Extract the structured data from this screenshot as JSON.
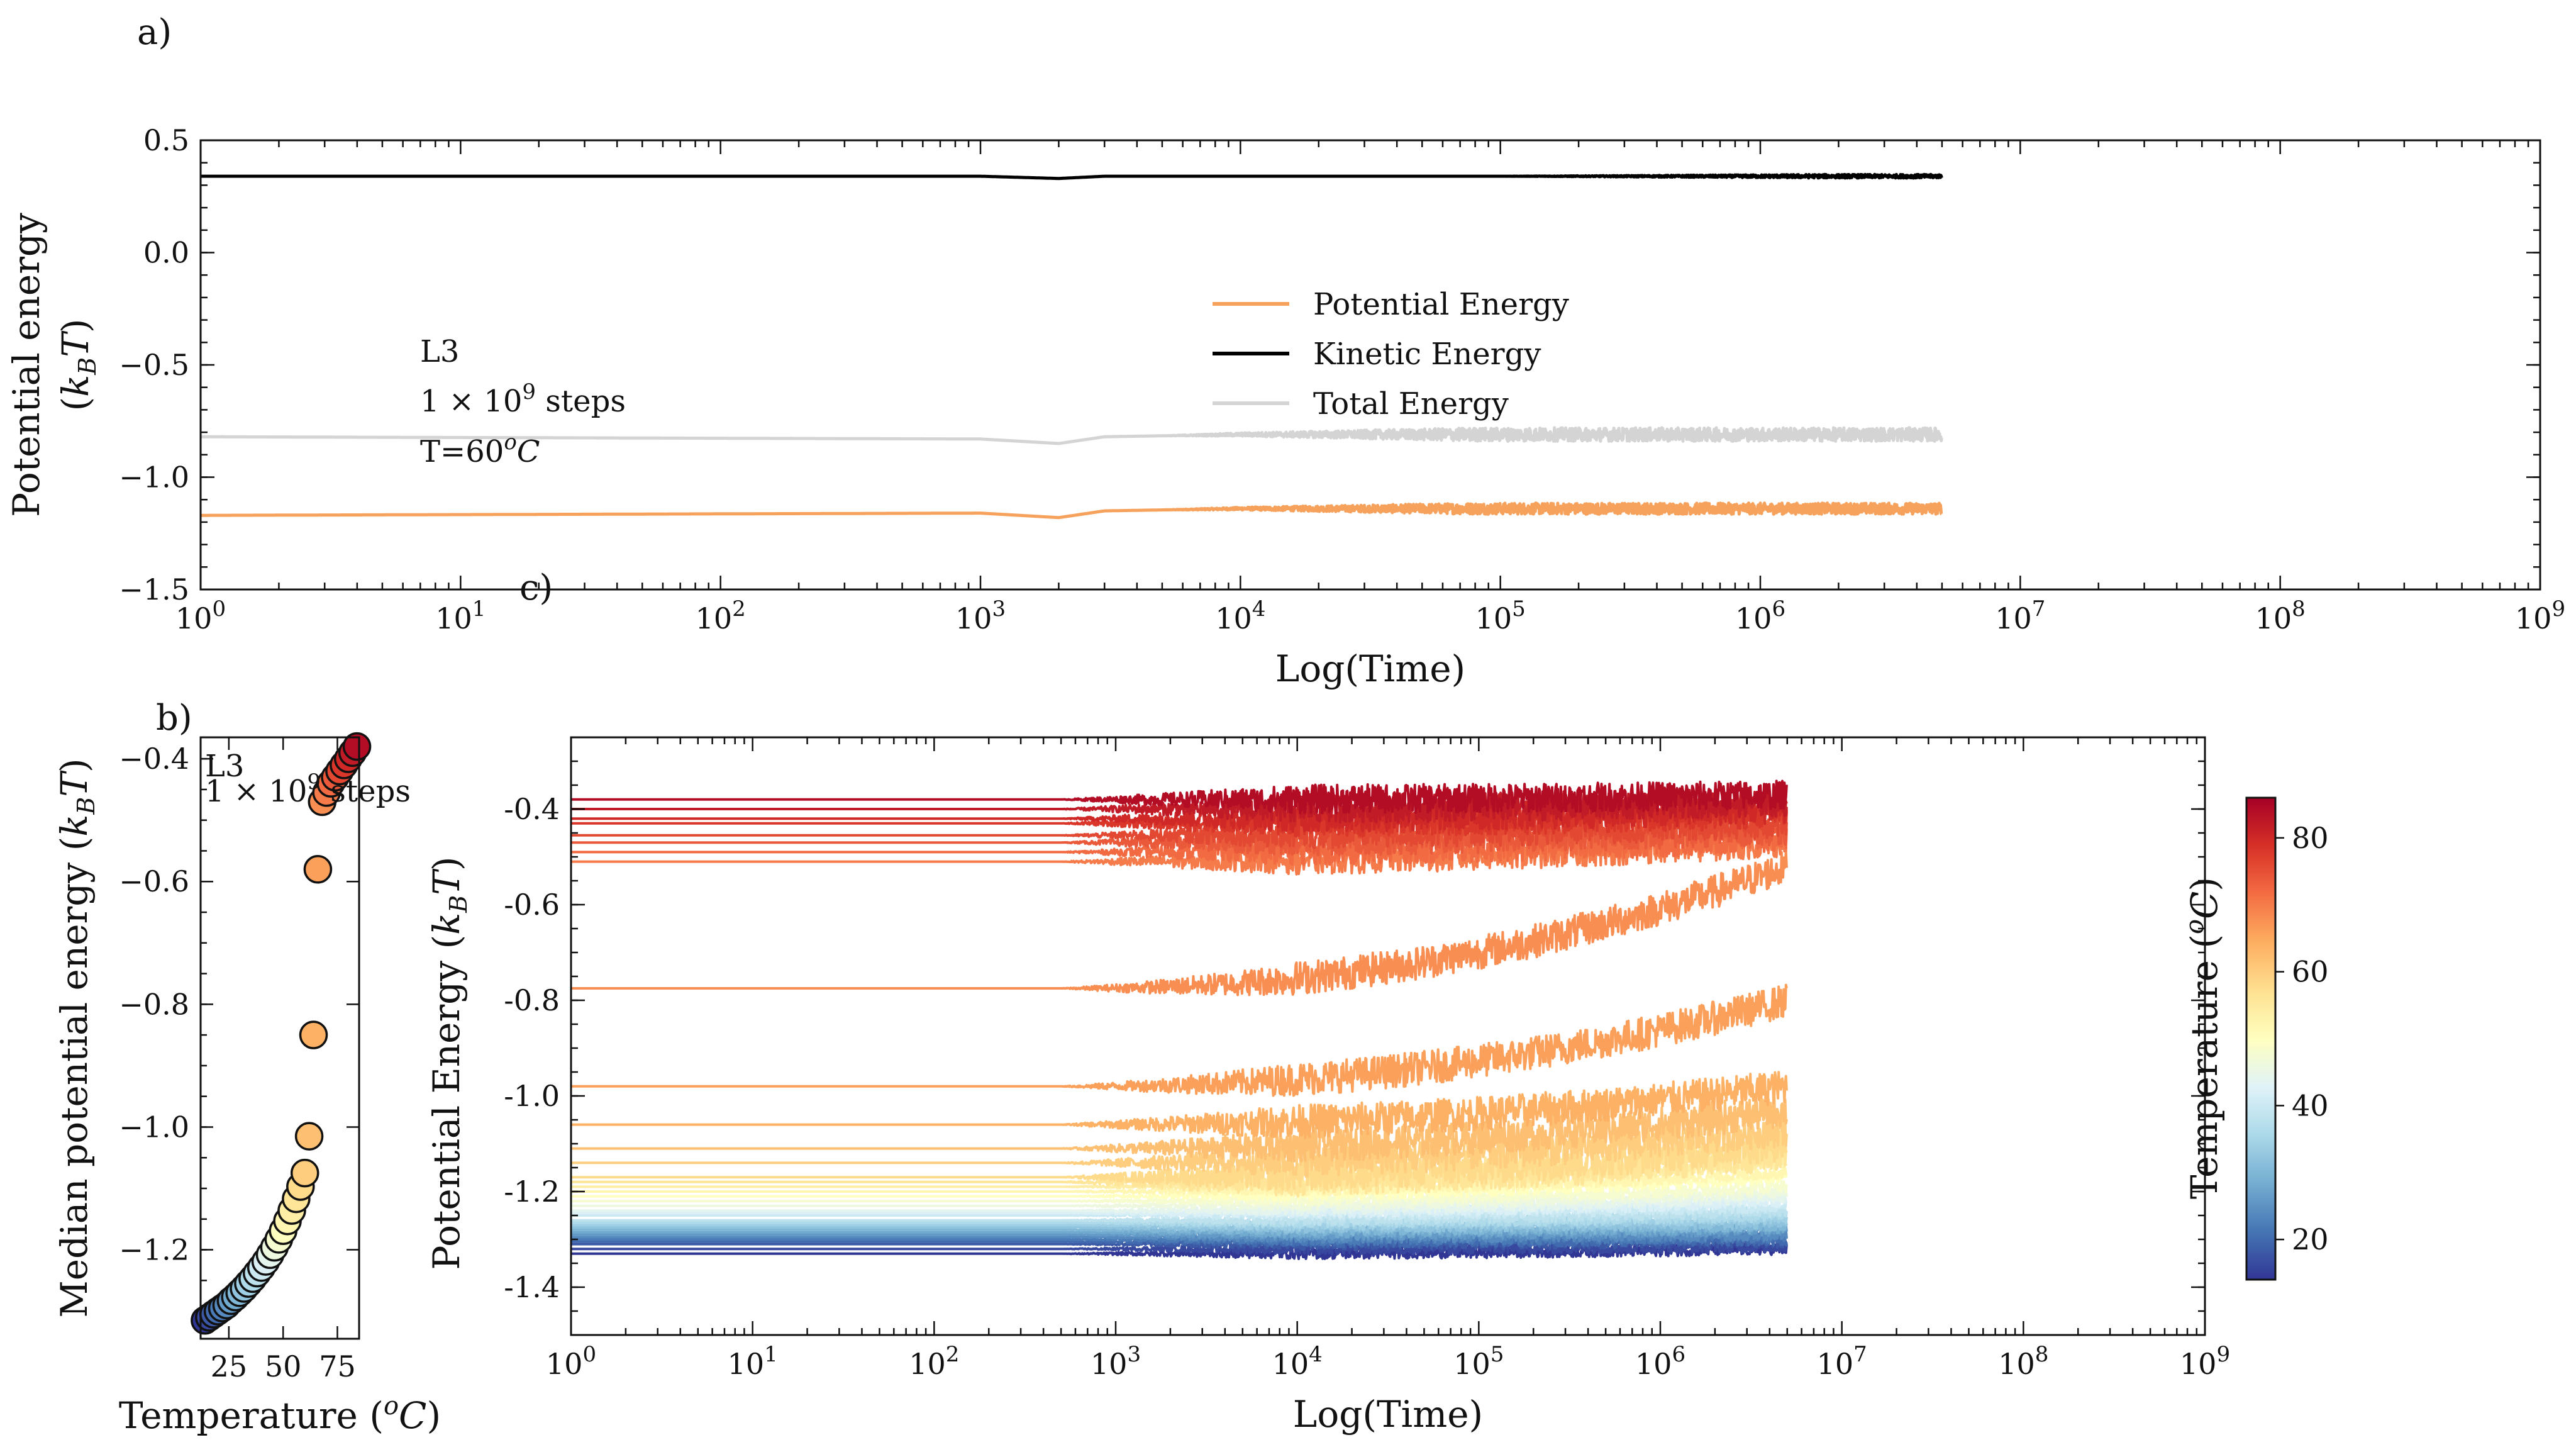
{
  "figure": {
    "panel_a_label": "a)",
    "panel_b_label": "b)",
    "panel_c_label": "c)"
  },
  "chart_data": [
    {
      "id": "a",
      "type": "line",
      "xscale": "log",
      "xlim": [
        1,
        1000000000
      ],
      "ylim": [
        -1.5,
        0.5
      ],
      "xlabel": "Log(Time)",
      "ylabel_line1": "Potential energy",
      "ylabel_line2": "(k_B T)",
      "x_tick_labels": [
        "10^0",
        "10^1",
        "10^2",
        "10^3",
        "10^4",
        "10^5",
        "10^6",
        "10^7",
        "10^8",
        "10^9"
      ],
      "y_ticks": [
        -1.5,
        -1.0,
        -0.5,
        0.0,
        0.5
      ],
      "y_tick_labels": [
        "−1.5",
        "−1.0",
        "−0.5",
        "0.0",
        "0.5"
      ],
      "annotation": [
        "L3",
        "1 × 10^9 steps",
        "T=60°C"
      ],
      "legend_position": "center",
      "series": [
        {
          "name": "Potential Energy",
          "color": "#f6a25c",
          "x": [
            1,
            1000,
            2000,
            3000,
            10000,
            100000,
            1000000,
            5000000
          ],
          "y": [
            -1.17,
            -1.16,
            -1.18,
            -1.15,
            -1.14,
            -1.14,
            -1.14,
            -1.14
          ],
          "noise_start": 5000,
          "noise_amp": 0.025
        },
        {
          "name": "Kinetic Energy",
          "color": "#000000",
          "x": [
            1,
            1000,
            2000,
            3000,
            10000,
            100000,
            1000000,
            5000000
          ],
          "y": [
            0.34,
            0.34,
            0.33,
            0.34,
            0.34,
            0.34,
            0.34,
            0.34
          ],
          "noise_start": 100000,
          "noise_amp": 0.008
        },
        {
          "name": "Total Energy",
          "color": "#d4d4d4",
          "x": [
            1,
            1000,
            2000,
            3000,
            10000,
            100000,
            1000000,
            5000000
          ],
          "y": [
            -0.82,
            -0.83,
            -0.85,
            -0.82,
            -0.81,
            -0.81,
            -0.81,
            -0.81
          ],
          "noise_start": 5000,
          "noise_amp": 0.03
        }
      ]
    },
    {
      "id": "b",
      "type": "scatter",
      "xlim": [
        12,
        85
      ],
      "ylim": [
        -1.345,
        -0.365
      ],
      "xlabel": "Temperature (°C)",
      "ylabel": "Median potential energy (k_B T)",
      "x_ticks": [
        25,
        50,
        75
      ],
      "x_tick_labels": [
        "25",
        "50",
        "75"
      ],
      "y_ticks": [
        -1.2,
        -1.0,
        -0.8,
        -0.6,
        -0.4
      ],
      "y_tick_labels": [
        "−1.2",
        "−1.0",
        "−0.8",
        "−0.6",
        "−0.4"
      ],
      "annotation": [
        "L3",
        "1 × 10^9 steps"
      ],
      "x": [
        14,
        16,
        18,
        20,
        22,
        24,
        26,
        28,
        30,
        32,
        34,
        36,
        38,
        40,
        42,
        44,
        46,
        48,
        50,
        52,
        54,
        56,
        58,
        60,
        62,
        64,
        66,
        68,
        70,
        72,
        74,
        76,
        78,
        80,
        82,
        84
      ],
      "y": [
        -1.315,
        -1.31,
        -1.305,
        -1.3,
        -1.295,
        -1.29,
        -1.283,
        -1.277,
        -1.27,
        -1.263,
        -1.255,
        -1.247,
        -1.238,
        -1.229,
        -1.219,
        -1.208,
        -1.196,
        -1.183,
        -1.169,
        -1.153,
        -1.136,
        -1.117,
        -1.097,
        -1.075,
        -1.015,
        -0.85,
        -0.58,
        -0.47,
        -0.455,
        -0.44,
        -0.43,
        -0.42,
        -0.41,
        -0.4,
        -0.39,
        -0.38
      ]
    },
    {
      "id": "c",
      "type": "line",
      "xscale": "log",
      "xlim": [
        1,
        1000000000
      ],
      "ylim": [
        -1.5,
        -0.25
      ],
      "xlabel": "Log(Time)",
      "ylabel": "Potential Energy (k_B T)",
      "x_tick_labels": [
        "10^0",
        "10^1",
        "10^2",
        "10^3",
        "10^4",
        "10^5",
        "10^6",
        "10^7",
        "10^8",
        "10^9"
      ],
      "y_ticks": [
        -1.4,
        -1.2,
        -1.0,
        -0.8,
        -0.6,
        -0.4
      ],
      "y_tick_labels": [
        "-1.4",
        "-1.2",
        "-1.0",
        "-0.8",
        "-0.6",
        "-0.4"
      ],
      "t_end": 5000000,
      "series": [
        {
          "temperature": 14,
          "start": -1.33,
          "end": -1.32
        },
        {
          "temperature": 16,
          "start": -1.32,
          "end": -1.315
        },
        {
          "temperature": 18,
          "start": -1.31,
          "end": -1.305
        },
        {
          "temperature": 20,
          "start": -1.305,
          "end": -1.3
        },
        {
          "temperature": 22,
          "start": -1.3,
          "end": -1.295
        },
        {
          "temperature": 24,
          "start": -1.295,
          "end": -1.29
        },
        {
          "temperature": 26,
          "start": -1.29,
          "end": -1.28
        },
        {
          "temperature": 28,
          "start": -1.285,
          "end": -1.275
        },
        {
          "temperature": 30,
          "start": -1.28,
          "end": -1.27
        },
        {
          "temperature": 32,
          "start": -1.275,
          "end": -1.265
        },
        {
          "temperature": 34,
          "start": -1.27,
          "end": -1.255
        },
        {
          "temperature": 36,
          "start": -1.265,
          "end": -1.25
        },
        {
          "temperature": 38,
          "start": -1.26,
          "end": -1.24
        },
        {
          "temperature": 40,
          "start": -1.25,
          "end": -1.23
        },
        {
          "temperature": 42,
          "start": -1.245,
          "end": -1.22
        },
        {
          "temperature": 44,
          "start": -1.24,
          "end": -1.21
        },
        {
          "temperature": 46,
          "start": -1.23,
          "end": -1.2
        },
        {
          "temperature": 48,
          "start": -1.22,
          "end": -1.19
        },
        {
          "temperature": 50,
          "start": -1.21,
          "end": -1.17
        },
        {
          "temperature": 52,
          "start": -1.2,
          "end": -1.16
        },
        {
          "temperature": 54,
          "start": -1.19,
          "end": -1.14
        },
        {
          "temperature": 56,
          "start": -1.18,
          "end": -1.12
        },
        {
          "temperature": 58,
          "start": -1.17,
          "end": -1.1
        },
        {
          "temperature": 60,
          "start": -1.14,
          "end": -1.07
        },
        {
          "temperature": 62,
          "start": -1.11,
          "end": -1.03
        },
        {
          "temperature": 64,
          "start": -1.06,
          "end": -0.98
        },
        {
          "temperature": 66,
          "start": -0.98,
          "end": -0.8
        },
        {
          "temperature": 68,
          "start": -0.775,
          "end": -0.52
        },
        {
          "temperature": 70,
          "start": -0.51,
          "end": -0.47
        },
        {
          "temperature": 72,
          "start": -0.49,
          "end": -0.46
        },
        {
          "temperature": 74,
          "start": -0.47,
          "end": -0.445
        },
        {
          "temperature": 76,
          "start": -0.455,
          "end": -0.43
        },
        {
          "temperature": 78,
          "start": -0.43,
          "end": -0.41
        },
        {
          "temperature": 80,
          "start": -0.42,
          "end": -0.4
        },
        {
          "temperature": 82,
          "start": -0.4,
          "end": -0.385
        },
        {
          "temperature": 84,
          "start": -0.38,
          "end": -0.37
        }
      ]
    },
    {
      "id": "colorbar",
      "type": "colorbar",
      "label": "Temperature (°C)",
      "range": [
        14,
        86
      ],
      "ticks": [
        20,
        40,
        60,
        80
      ],
      "tick_labels": [
        "20",
        "40",
        "60",
        "80"
      ],
      "colormap": "RdYlBu_r",
      "stops": [
        "#313695",
        "#4575b4",
        "#74add1",
        "#abd9e9",
        "#e0f3f8",
        "#ffffbf",
        "#fee090",
        "#fdae61",
        "#f46d43",
        "#d73027",
        "#a50026"
      ]
    }
  ]
}
